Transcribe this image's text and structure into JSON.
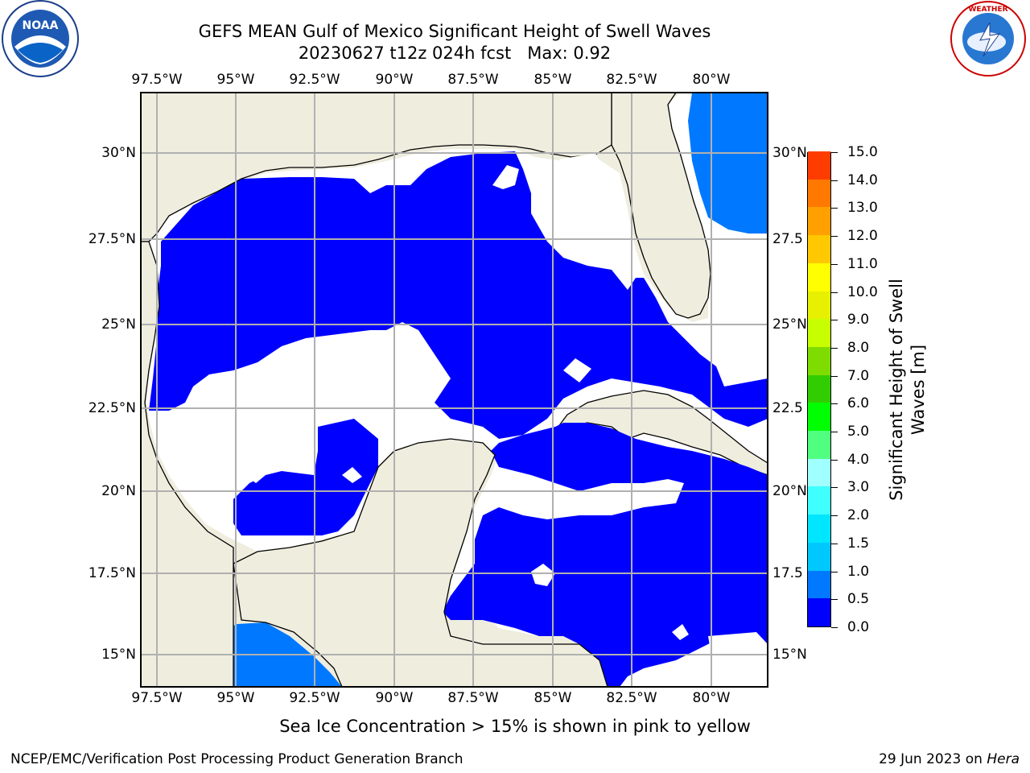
{
  "title": {
    "line1": "GEFS MEAN Gulf of Mexico Significant Height of Swell Waves",
    "line2": "20230627 t12z 024h fcst   Max: 0.92"
  },
  "logos": {
    "left": {
      "name": "noaa-logo",
      "text": "NOAA",
      "ring_text": "NATIONAL OCEANIC AND ATMOSPHERIC ADMINISTRATION · U.S. DEPARTMENT OF COMMERCE"
    },
    "right": {
      "name": "nws-logo",
      "ring_text": "NATIONAL WEATHER SERVICE"
    }
  },
  "map": {
    "lon_labels": [
      "97.5°W",
      "95°W",
      "92.5°W",
      "90°W",
      "87.5°W",
      "85°W",
      "82.5°W",
      "80°W"
    ],
    "lat_labels_left": [
      "30°N",
      "27.5°N",
      "25°N",
      "22.5°N",
      "20°N",
      "17.5°N",
      "15°N"
    ],
    "lat_labels_right": [
      "30°N",
      "27.5",
      "25°N",
      "22.5",
      "20°N",
      "17.5",
      "15°N"
    ],
    "colors": {
      "land": "#efedde",
      "ocean_low": "#0000ff",
      "ocean_mid": "#0078ff",
      "gridline": "#b0b0b0",
      "coast": "#000000"
    }
  },
  "colorbar": {
    "label": "Significant Height of Swell Waves [m]",
    "ticks": [
      "0.0",
      "0.5",
      "1.0",
      "1.5",
      "2.0",
      "3.0",
      "4.0",
      "5.0",
      "6.0",
      "7.0",
      "8.0",
      "9.0",
      "10.0",
      "11.0",
      "12.0",
      "13.0",
      "14.0",
      "15.0"
    ],
    "colors": [
      "#0000ff",
      "#0078ff",
      "#00c8ff",
      "#00e6ff",
      "#40ffff",
      "#a0ffff",
      "#50ff80",
      "#00ff00",
      "#32cd00",
      "#7fdc00",
      "#c8ff00",
      "#e6f000",
      "#ffff00",
      "#ffc800",
      "#ffa000",
      "#ff7800",
      "#ff3c00",
      "#ff0000"
    ]
  },
  "footnote": "Sea Ice Concentration > 15% is shown in pink to yellow",
  "credits": {
    "left": "NCEP/EMC/Verification Post Processing Product Generation Branch",
    "right_date": "29 Jun 2023 on",
    "right_host": "Hera"
  }
}
